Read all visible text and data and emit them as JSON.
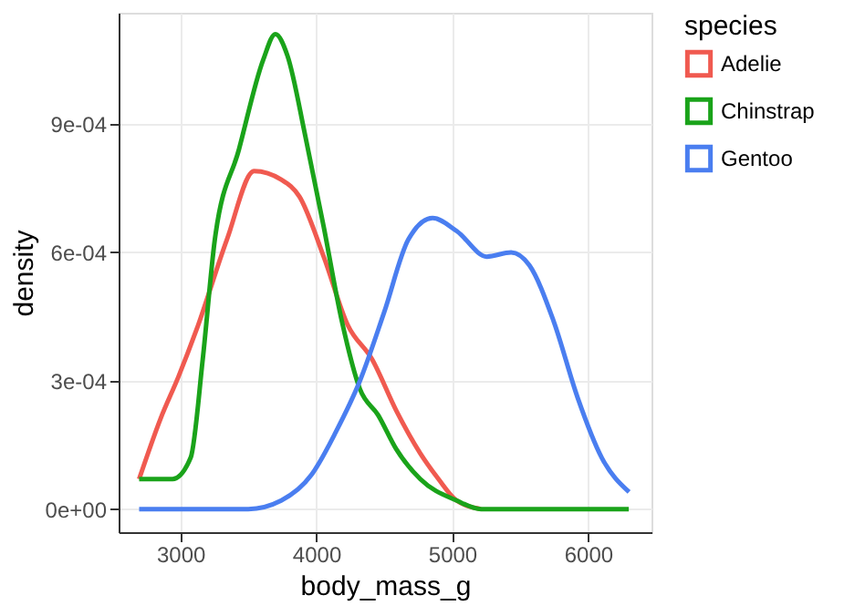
{
  "chart_data": {
    "type": "line",
    "xlabel": "body_mass_g",
    "ylabel": "density",
    "legend_title": "species",
    "legend": "right",
    "grid": true,
    "line_style": "solid",
    "xlim": [
      2546,
      6467
    ],
    "xticks": [
      3000,
      4000,
      5000,
      6000
    ],
    "ylim": [
      -5.4e-05,
      0.00116
    ],
    "yticks": [
      {
        "value": 0,
        "label": "0e+00"
      },
      {
        "value": 0.0003,
        "label": "3e-04"
      },
      {
        "value": 0.0006,
        "label": "6e-04"
      },
      {
        "value": 0.0009,
        "label": "9e-04"
      }
    ],
    "series": [
      {
        "name": "Adelie",
        "color": "#f05a50",
        "x": [
          2697,
          2853,
          2987,
          3120,
          3343,
          3543,
          3743,
          3877,
          4055,
          4232,
          4411,
          4589,
          4766,
          4900,
          5033,
          5212
        ],
        "values": [
          7e-05,
          0.00021,
          0.00031,
          0.00042,
          0.00063,
          0.00079,
          0.00077,
          0.00073,
          0.00059,
          0.00043,
          0.00035,
          0.00023,
          0.00013,
          7e-05,
          2e-05,
          0
        ]
      },
      {
        "name": "Chinstrap",
        "color": "#1aa31a",
        "x": [
          2697,
          2809,
          2943,
          3076,
          3165,
          3254,
          3431,
          3610,
          3699,
          3788,
          3921,
          4055,
          4188,
          4322,
          4455,
          4589,
          4766,
          5033,
          5212,
          5600,
          6000,
          6300
        ],
        "values": [
          7e-05,
          7e-05,
          7e-05,
          0.00012,
          0.00035,
          0.00063,
          0.00084,
          0.00105,
          0.00111,
          0.00106,
          0.00087,
          0.00066,
          0.00044,
          0.00028,
          0.00022,
          0.00014,
          7e-05,
          2e-05,
          0,
          0,
          0,
          0
        ]
      },
      {
        "name": "Gentoo",
        "color": "#4a7ef0",
        "x": [
          2697,
          3200,
          3500,
          3743,
          3965,
          4144,
          4322,
          4500,
          4678,
          4856,
          5033,
          5256,
          5434,
          5568,
          5746,
          5924,
          6101,
          6302
        ],
        "values": [
          0,
          0,
          0,
          2e-05,
          8e-05,
          0.00018,
          0.0003,
          0.00046,
          0.00063,
          0.00068,
          0.00065,
          0.00059,
          0.0006,
          0.00057,
          0.00044,
          0.00026,
          0.00012,
          4e-05
        ]
      }
    ]
  }
}
